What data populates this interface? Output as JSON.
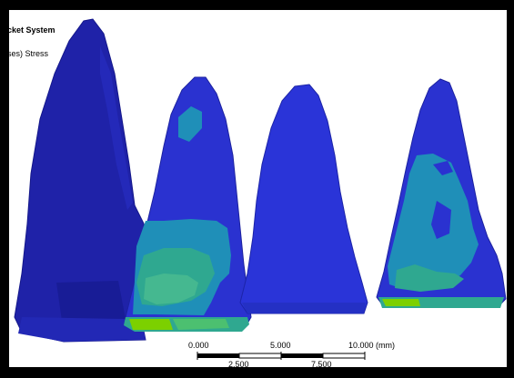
{
  "viewer": {
    "title": "cket System",
    "result_label": "ses) Stress"
  },
  "scale_bar": {
    "top_labels": [
      "0.000",
      "5.000",
      "10.000 (mm)"
    ],
    "bottom_labels": [
      "2.500",
      "7.500"
    ]
  },
  "colors": {
    "frame": "#000000",
    "background": "#ffffff",
    "model_dark_blue": "#1f23b0",
    "model_blue": "#2a34d8",
    "stress_cyan": "#1f8fb8",
    "stress_teal": "#2fa890",
    "stress_green": "#7cd000"
  }
}
